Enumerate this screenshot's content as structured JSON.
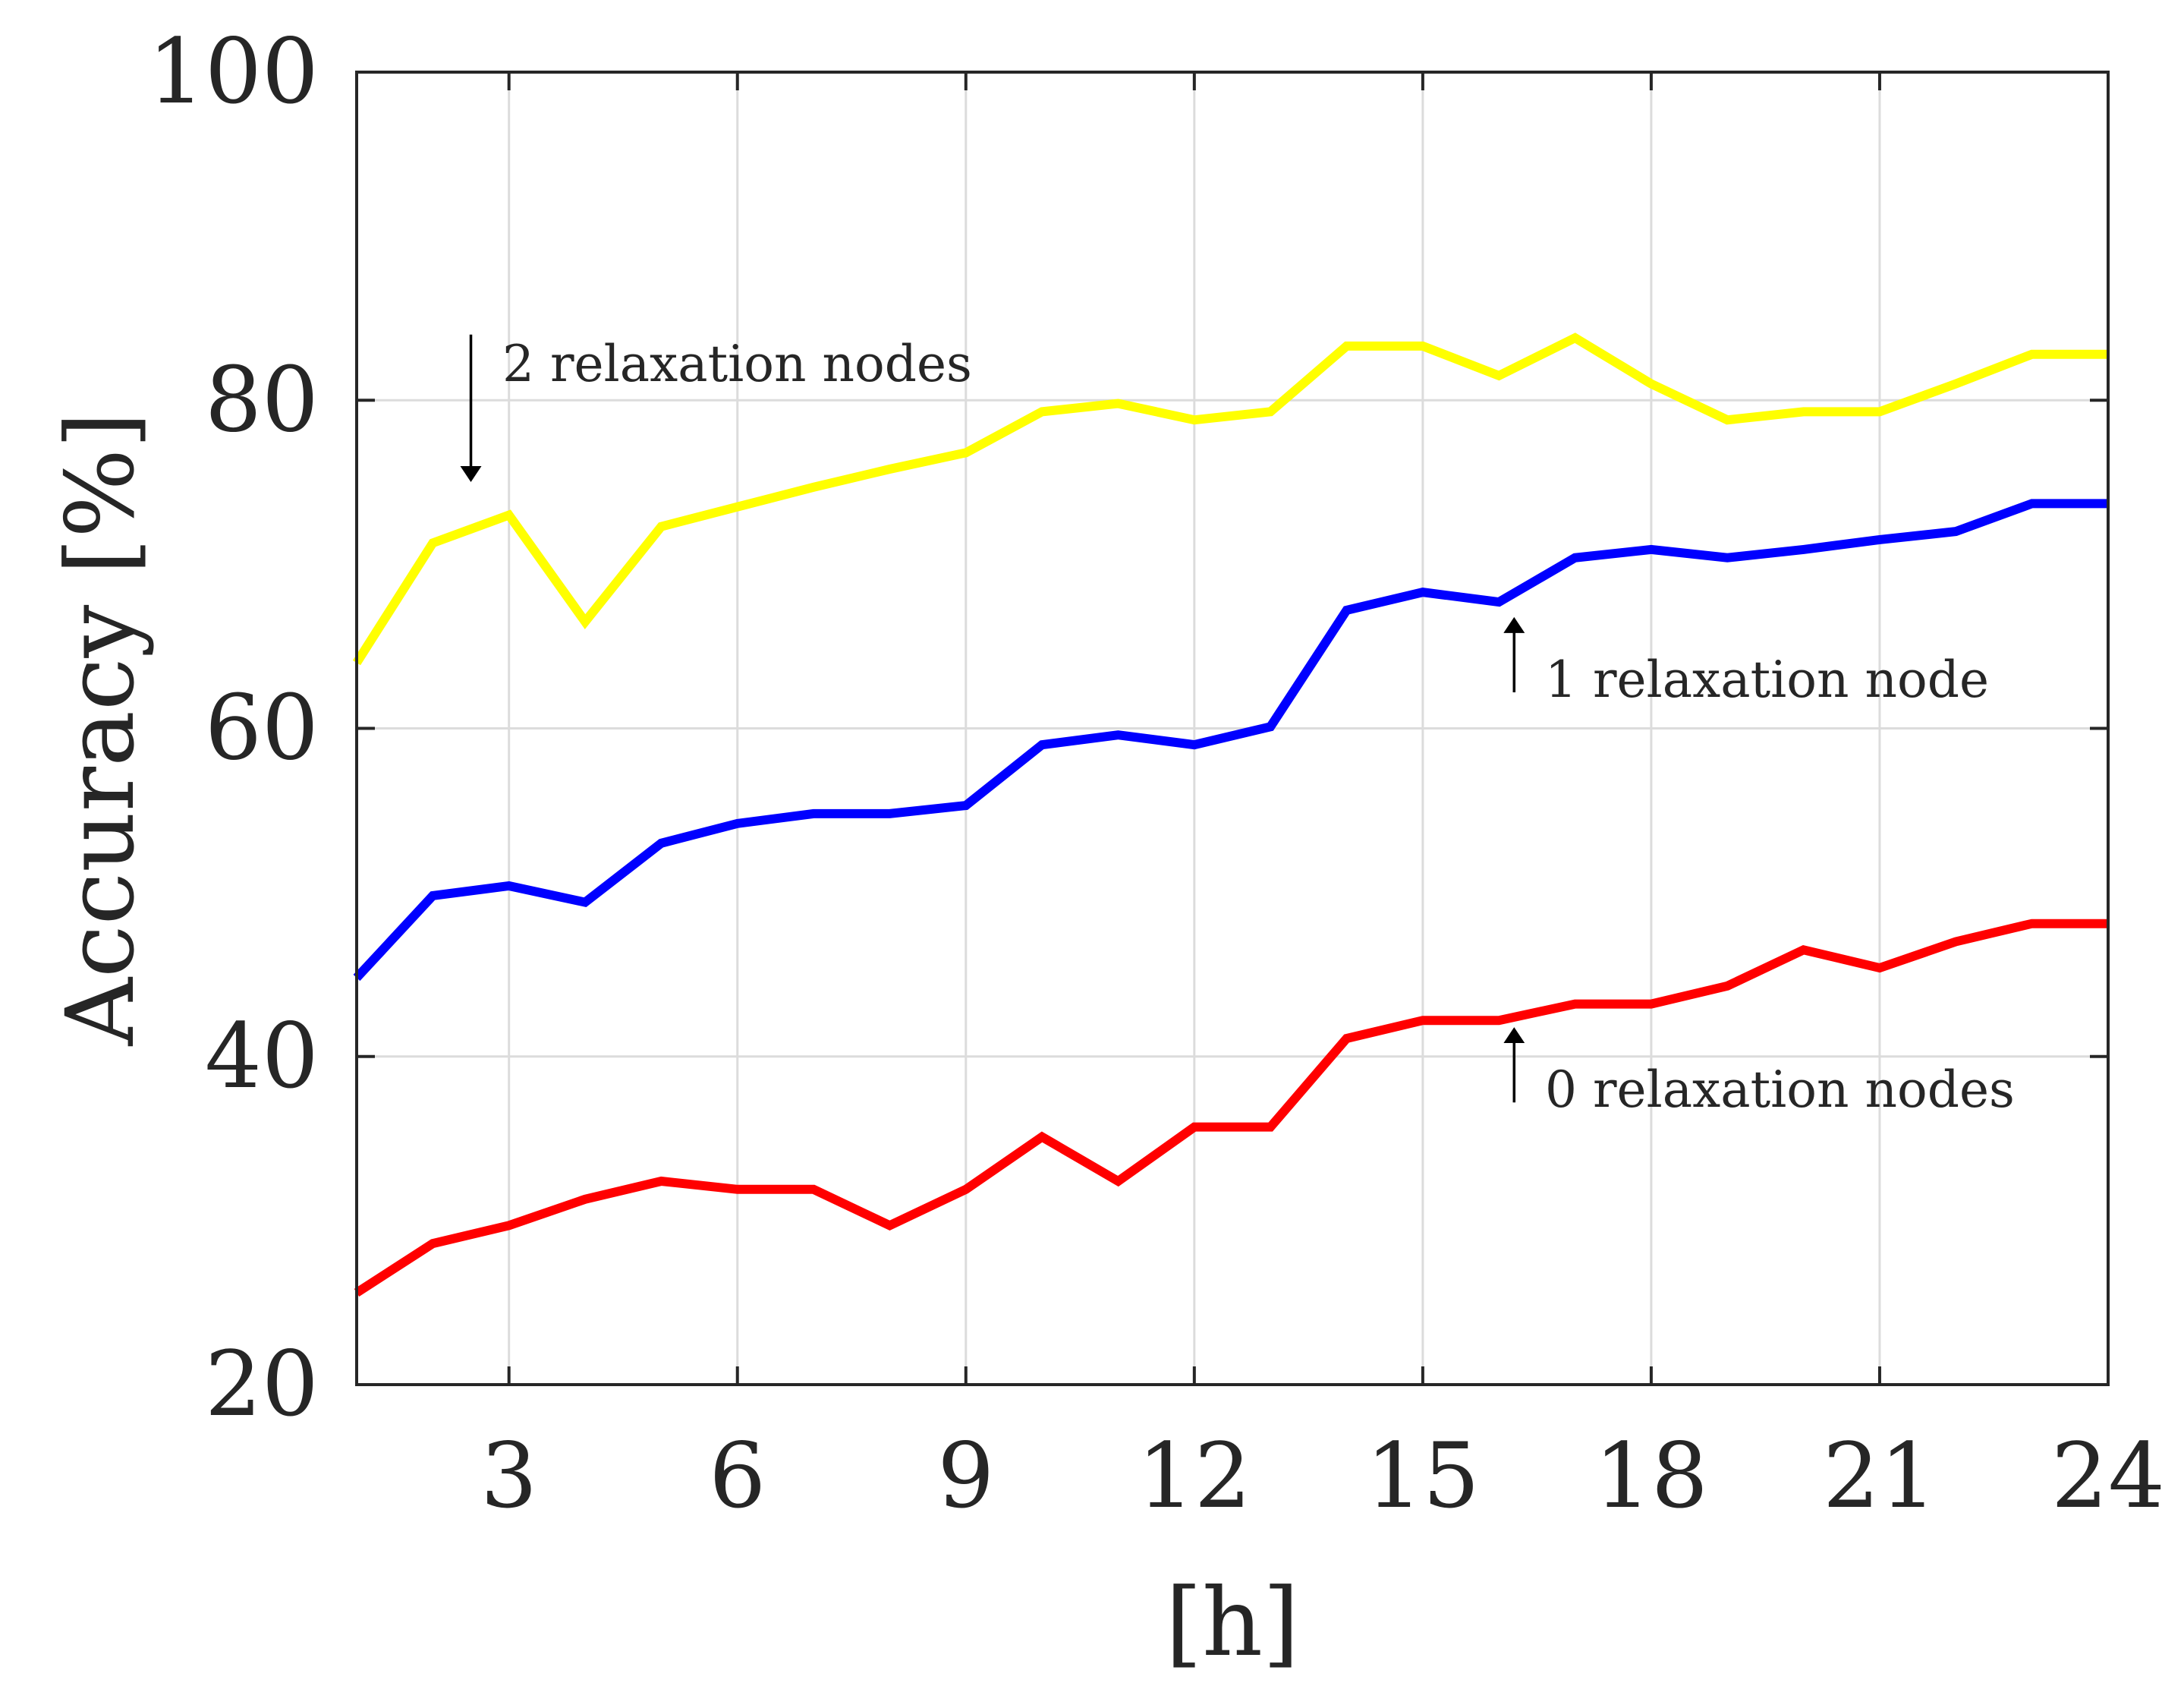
{
  "chart_data": {
    "type": "line",
    "title": "",
    "xlabel": "[h]",
    "ylabel": "Accuracy [%]",
    "xlim": [
      1,
      24
    ],
    "ylim": [
      20,
      100
    ],
    "xticks": [
      3,
      6,
      9,
      12,
      15,
      18,
      21,
      24
    ],
    "yticks": [
      20,
      40,
      60,
      80,
      100
    ],
    "grid": true,
    "x": [
      1,
      2,
      3,
      4,
      5,
      6,
      7,
      8,
      9,
      10,
      11,
      12,
      13,
      14,
      15,
      16,
      17,
      18,
      19,
      20,
      21,
      22,
      23,
      24
    ],
    "series": [
      {
        "name": "2 relaxation nodes",
        "color": "#ffff00",
        "values": [
          64.0,
          71.3,
          73.0,
          66.5,
          72.3,
          73.5,
          74.7,
          75.8,
          76.8,
          79.3,
          79.8,
          78.8,
          79.3,
          83.3,
          83.3,
          81.5,
          83.8,
          81.0,
          78.8,
          79.3,
          79.3,
          81.0,
          82.8,
          82.8
        ]
      },
      {
        "name": "1 relaxation node",
        "color": "#0000ff",
        "values": [
          44.8,
          49.8,
          50.4,
          49.4,
          53.0,
          54.2,
          54.8,
          54.8,
          55.3,
          59.0,
          59.6,
          59.0,
          60.1,
          67.2,
          68.3,
          67.7,
          70.4,
          70.9,
          70.4,
          70.9,
          71.5,
          72.0,
          73.7,
          73.7
        ]
      },
      {
        "name": "0 relaxation nodes",
        "color": "#ff0000",
        "values": [
          25.6,
          28.6,
          29.7,
          31.3,
          32.4,
          31.9,
          31.9,
          29.7,
          31.9,
          35.1,
          32.4,
          35.7,
          35.7,
          41.1,
          42.2,
          42.2,
          43.2,
          43.2,
          44.3,
          46.5,
          45.4,
          47.0,
          48.1,
          48.1
        ]
      }
    ],
    "annotations": [
      {
        "text": "2 relaxation nodes",
        "arrow_x": 2.5,
        "arrow_from": 84.0,
        "arrow_to": 75.5
      },
      {
        "text": "1 relaxation node",
        "arrow_x": 16.2,
        "arrow_from": 62.2,
        "arrow_to": 66.3
      },
      {
        "text": "0 relaxation nodes",
        "arrow_x": 16.2,
        "arrow_from": 37.2,
        "arrow_to": 41.3
      }
    ],
    "annotation_color": "#000000",
    "grid_color": "#dcdcdc",
    "axis_color": "#262626"
  }
}
